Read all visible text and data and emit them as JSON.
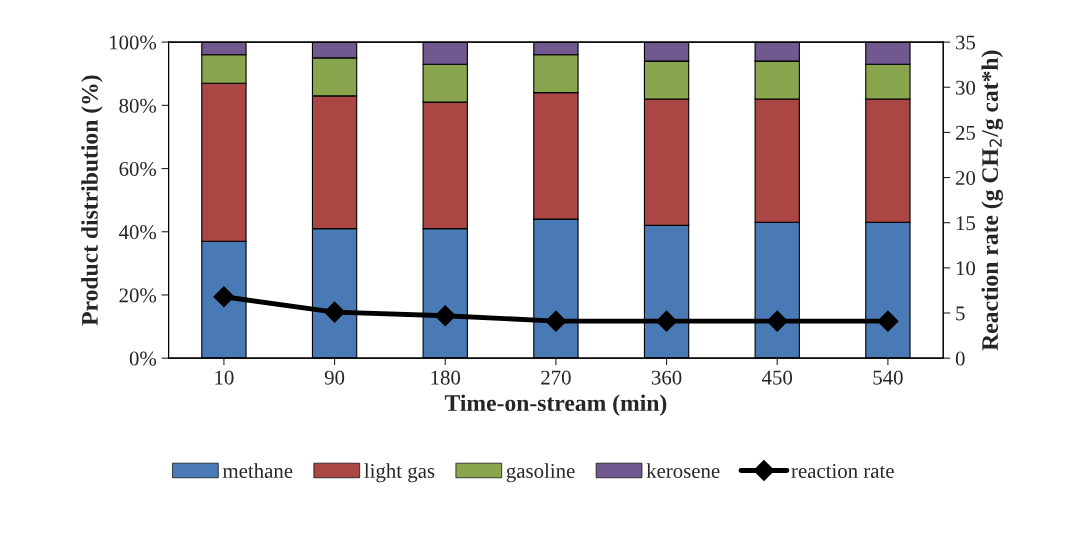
{
  "chart_data": {
    "type": "bar",
    "stacked": true,
    "xlabel": "Time-on-stream (min)",
    "ylabel": "Product distribution (%)",
    "y2label": "Reaction rate (g CH$_{2}$/g cat*h)",
    "categories": [
      "10",
      "90",
      "180",
      "270",
      "360",
      "450",
      "540"
    ],
    "series": [
      {
        "name": "methane",
        "color": "#4a7ab5",
        "values": [
          37,
          41,
          41,
          44,
          42,
          43,
          43
        ]
      },
      {
        "name": "light gas",
        "color": "#aa4643",
        "values": [
          50,
          42,
          40,
          40,
          40,
          39,
          39
        ]
      },
      {
        "name": "gasoline",
        "color": "#89a54e",
        "values": [
          9,
          12,
          12,
          12,
          12,
          12,
          11
        ]
      },
      {
        "name": "kerosene",
        "color": "#71588f",
        "values": [
          4,
          5,
          7,
          4,
          6,
          6,
          7
        ]
      },
      {
        "name": "reaction rate",
        "type": "line",
        "axis": "y2",
        "color": "#000000",
        "marker": "diamond",
        "line_style": "solid",
        "values": [
          6.8,
          5.1,
          4.7,
          4.1,
          4.1,
          4.1,
          4.1
        ]
      }
    ],
    "ylim": [
      0,
      100
    ],
    "yticks": [
      {
        "value": 0,
        "label": "0%"
      },
      {
        "value": 20,
        "label": "20%"
      },
      {
        "value": 40,
        "label": "40%"
      },
      {
        "value": 60,
        "label": "60%"
      },
      {
        "value": 80,
        "label": "80%"
      },
      {
        "value": 100,
        "label": "100%"
      }
    ],
    "y2lim": [
      0,
      35
    ],
    "y2ticks": [
      0,
      5,
      10,
      15,
      20,
      25,
      30,
      35
    ],
    "grid": false,
    "legend": "bottom"
  }
}
